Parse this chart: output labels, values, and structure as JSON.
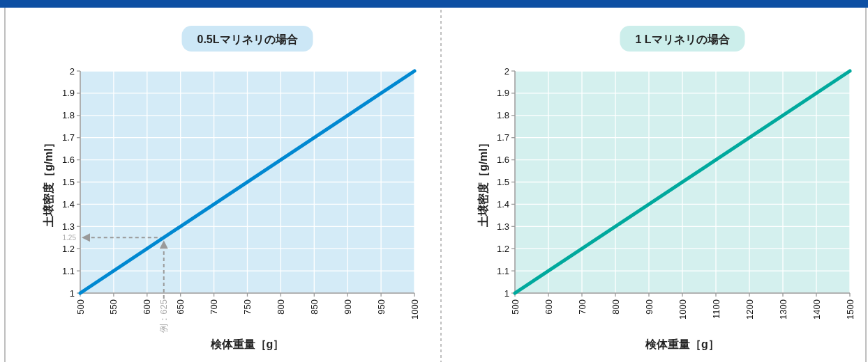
{
  "chart_data": [
    {
      "type": "line",
      "title": "0.5Lマリネリの場合",
      "xlabel": "検体重量［g］",
      "ylabel": "土壌密度［g/ml］",
      "series": [
        {
          "color": "#0088d1",
          "x": [
            500,
            1000
          ],
          "values": [
            1,
            2
          ]
        }
      ],
      "xlim": [
        500,
        1000
      ],
      "ylim": [
        1,
        2
      ],
      "xticks": [
        500,
        550,
        600,
        650,
        700,
        750,
        800,
        850,
        900,
        950,
        1000
      ],
      "yticks": [
        1,
        1.1,
        1.2,
        1.3,
        1.4,
        1.5,
        1.6,
        1.7,
        1.8,
        1.9,
        2
      ],
      "grid": true,
      "ref_lines": [
        {
          "axis": "y",
          "value": 1.25,
          "label": "1.25",
          "color": "#999999",
          "line_style": "dashed"
        },
        {
          "axis": "x",
          "value": 625,
          "label": "例：625",
          "color": "#999999",
          "line_style": "dashed"
        }
      ]
    },
    {
      "type": "line",
      "title": "1 Lマリネリの場合",
      "xlabel": "検体重量［g］",
      "ylabel": "土壌密度［g/ml］",
      "series": [
        {
          "color": "#00a99d",
          "x": [
            500,
            1500
          ],
          "values": [
            1,
            2
          ]
        }
      ],
      "xlim": [
        500,
        1500
      ],
      "ylim": [
        1,
        2
      ],
      "xticks": [
        500,
        600,
        700,
        800,
        900,
        1000,
        1100,
        1200,
        1300,
        1400,
        1500
      ],
      "yticks": [
        1,
        1.1,
        1.2,
        1.3,
        1.4,
        1.5,
        1.6,
        1.7,
        1.8,
        1.9,
        2
      ],
      "grid": true
    }
  ]
}
